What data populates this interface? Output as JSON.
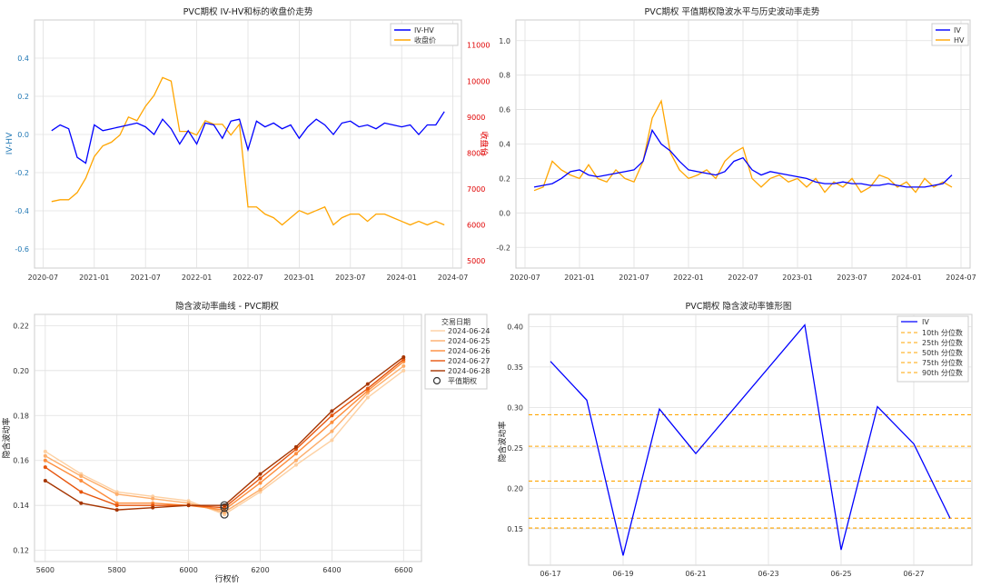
{
  "chart_data": [
    {
      "type": "line",
      "title": "PVC期权 IV-HV和标的收盘价走势",
      "xlabel": "",
      "ylabel": "IV-HV",
      "ylabel_right": "收盘价",
      "x_ticks": [
        "2020-07",
        "2021-01",
        "2021-07",
        "2022-01",
        "2022-07",
        "2023-01",
        "2023-07",
        "2024-01",
        "2024-07"
      ],
      "y_ticks": [
        0.4,
        0.2,
        0.0,
        -0.2,
        -0.4,
        -0.6
      ],
      "y_ticks_right": [
        11000,
        10000,
        9000,
        8000,
        7000,
        6000,
        5000
      ],
      "ylim": [
        -0.7,
        0.6
      ],
      "ylim_right": [
        4800,
        11700
      ],
      "grid": true,
      "legend": "top-right",
      "colors": {
        "IV-HV": "#0000ff",
        "收盘价": "#ffa500",
        "left_axis": "#1f77b4",
        "right_axis": "#e00000"
      },
      "series": [
        {
          "name": "IV-HV",
          "x": [
            "2020-08",
            "2020-09",
            "2020-10",
            "2020-11",
            "2020-12",
            "2021-01",
            "2021-02",
            "2021-03",
            "2021-04",
            "2021-05",
            "2021-06",
            "2021-07",
            "2021-08",
            "2021-09",
            "2021-10",
            "2021-11",
            "2021-12",
            "2022-01",
            "2022-02",
            "2022-03",
            "2022-04",
            "2022-05",
            "2022-06",
            "2022-07",
            "2022-08",
            "2022-09",
            "2022-10",
            "2022-11",
            "2022-12",
            "2023-01",
            "2023-02",
            "2023-03",
            "2023-04",
            "2023-05",
            "2023-06",
            "2023-07",
            "2023-08",
            "2023-09",
            "2023-10",
            "2023-11",
            "2023-12",
            "2024-01",
            "2024-02",
            "2024-03",
            "2024-04",
            "2024-05",
            "2024-06"
          ],
          "values": [
            0.02,
            0.05,
            0.03,
            -0.12,
            -0.15,
            0.05,
            0.02,
            0.03,
            0.04,
            0.05,
            0.06,
            0.04,
            0.0,
            0.08,
            0.03,
            -0.05,
            0.02,
            -0.05,
            0.06,
            0.05,
            -0.02,
            0.07,
            0.08,
            -0.08,
            0.07,
            0.04,
            0.06,
            0.03,
            0.05,
            -0.02,
            0.04,
            0.08,
            0.05,
            0.0,
            0.06,
            0.07,
            0.04,
            0.05,
            0.03,
            0.06,
            0.05,
            0.04,
            0.05,
            0.0,
            0.05,
            0.05,
            0.12
          ]
        },
        {
          "name": "收盘价",
          "x": [
            "2020-08",
            "2020-09",
            "2020-10",
            "2020-11",
            "2020-12",
            "2021-01",
            "2021-02",
            "2021-03",
            "2021-04",
            "2021-05",
            "2021-06",
            "2021-07",
            "2021-08",
            "2021-09",
            "2021-10",
            "2021-11",
            "2021-12",
            "2022-01",
            "2022-02",
            "2022-03",
            "2022-04",
            "2022-05",
            "2022-06",
            "2022-07",
            "2022-08",
            "2022-09",
            "2022-10",
            "2022-11",
            "2022-12",
            "2023-01",
            "2023-02",
            "2023-03",
            "2023-04",
            "2023-05",
            "2023-06",
            "2023-07",
            "2023-08",
            "2023-09",
            "2023-10",
            "2023-11",
            "2023-12",
            "2024-01",
            "2024-02",
            "2024-03",
            "2024-04",
            "2024-05",
            "2024-06"
          ],
          "values": [
            6650,
            6700,
            6700,
            6900,
            7300,
            7900,
            8200,
            8300,
            8500,
            9000,
            8900,
            9300,
            9600,
            10100,
            10000,
            8600,
            8600,
            8500,
            8900,
            8800,
            8800,
            8500,
            8800,
            6500,
            6500,
            6300,
            6200,
            6000,
            6200,
            6400,
            6300,
            6400,
            6500,
            6000,
            6200,
            6300,
            6300,
            6100,
            6300,
            6300,
            6200,
            6100,
            6000,
            6100,
            6000,
            6100,
            6000
          ]
        }
      ]
    },
    {
      "type": "line",
      "title": "PVC期权 平值期权隐波水平与历史波动率走势",
      "xlabel": "",
      "ylabel": "",
      "x_ticks": [
        "2020-07",
        "2021-01",
        "2021-07",
        "2022-01",
        "2022-07",
        "2023-01",
        "2023-07",
        "2024-01",
        "2024-07"
      ],
      "y_ticks": [
        1.0,
        0.8,
        0.6,
        0.4,
        0.2,
        0.0,
        -0.2
      ],
      "ylim": [
        -0.32,
        1.12
      ],
      "grid": true,
      "legend": "top-right",
      "colors": {
        "IV": "#0000ff",
        "HV": "#ffa500"
      },
      "series": [
        {
          "name": "IV",
          "x": [
            "2020-08",
            "2020-09",
            "2020-10",
            "2020-11",
            "2020-12",
            "2021-01",
            "2021-02",
            "2021-03",
            "2021-04",
            "2021-05",
            "2021-06",
            "2021-07",
            "2021-08",
            "2021-09",
            "2021-10",
            "2021-11",
            "2021-12",
            "2022-01",
            "2022-02",
            "2022-03",
            "2022-04",
            "2022-05",
            "2022-06",
            "2022-07",
            "2022-08",
            "2022-09",
            "2022-10",
            "2022-11",
            "2022-12",
            "2023-01",
            "2023-02",
            "2023-03",
            "2023-04",
            "2023-05",
            "2023-06",
            "2023-07",
            "2023-08",
            "2023-09",
            "2023-10",
            "2023-11",
            "2023-12",
            "2024-01",
            "2024-02",
            "2024-03",
            "2024-04",
            "2024-05",
            "2024-06"
          ],
          "values": [
            0.15,
            0.16,
            0.17,
            0.2,
            0.24,
            0.25,
            0.22,
            0.21,
            0.22,
            0.23,
            0.24,
            0.25,
            0.3,
            0.48,
            0.4,
            0.36,
            0.3,
            0.25,
            0.24,
            0.23,
            0.22,
            0.24,
            0.3,
            0.32,
            0.25,
            0.22,
            0.24,
            0.23,
            0.22,
            0.21,
            0.2,
            0.18,
            0.17,
            0.17,
            0.18,
            0.17,
            0.17,
            0.16,
            0.16,
            0.17,
            0.16,
            0.15,
            0.15,
            0.15,
            0.16,
            0.17,
            0.22
          ]
        },
        {
          "name": "HV",
          "x": [
            "2020-08",
            "2020-09",
            "2020-10",
            "2020-11",
            "2020-12",
            "2021-01",
            "2021-02",
            "2021-03",
            "2021-04",
            "2021-05",
            "2021-06",
            "2021-07",
            "2021-08",
            "2021-09",
            "2021-10",
            "2021-11",
            "2021-12",
            "2022-01",
            "2022-02",
            "2022-03",
            "2022-04",
            "2022-05",
            "2022-06",
            "2022-07",
            "2022-08",
            "2022-09",
            "2022-10",
            "2022-11",
            "2022-12",
            "2023-01",
            "2023-02",
            "2023-03",
            "2023-04",
            "2023-05",
            "2023-06",
            "2023-07",
            "2023-08",
            "2023-09",
            "2023-10",
            "2023-11",
            "2023-12",
            "2024-01",
            "2024-02",
            "2024-03",
            "2024-04",
            "2024-05",
            "2024-06"
          ],
          "values": [
            0.13,
            0.15,
            0.3,
            0.25,
            0.22,
            0.2,
            0.28,
            0.2,
            0.18,
            0.25,
            0.2,
            0.18,
            0.3,
            0.55,
            0.65,
            0.35,
            0.25,
            0.2,
            0.22,
            0.25,
            0.2,
            0.3,
            0.35,
            0.38,
            0.2,
            0.15,
            0.2,
            0.22,
            0.18,
            0.2,
            0.15,
            0.2,
            0.12,
            0.18,
            0.15,
            0.2,
            0.12,
            0.15,
            0.22,
            0.2,
            0.15,
            0.18,
            0.12,
            0.2,
            0.15,
            0.18,
            0.15
          ]
        }
      ]
    },
    {
      "type": "line",
      "title": "隐含波动率曲线 - PVC期权",
      "xlabel": "行权价",
      "ylabel": "隐含波动率",
      "x": [
        5600,
        5700,
        5800,
        5900,
        6000,
        6100,
        6200,
        6300,
        6400,
        6500,
        6600
      ],
      "x_ticks": [
        5600,
        5800,
        6000,
        6200,
        6400,
        6600
      ],
      "y_ticks": [
        0.22,
        0.2,
        0.18,
        0.16,
        0.14,
        0.12
      ],
      "xlim": [
        5570,
        6650
      ],
      "ylim": [
        0.115,
        0.225
      ],
      "grid": true,
      "legend_title": "交易日期",
      "legend": "top-right",
      "series": [
        {
          "name": "2024-06-24",
          "color": "#fdd0a2",
          "values": [
            0.164,
            0.154,
            0.146,
            0.144,
            0.142,
            0.136,
            0.146,
            0.158,
            0.169,
            0.188,
            0.2
          ]
        },
        {
          "name": "2024-06-25",
          "color": "#fdae6b",
          "values": [
            0.162,
            0.153,
            0.145,
            0.143,
            0.141,
            0.137,
            0.147,
            0.16,
            0.173,
            0.19,
            0.202
          ]
        },
        {
          "name": "2024-06-26",
          "color": "#fd8d3c",
          "values": [
            0.16,
            0.151,
            0.141,
            0.141,
            0.14,
            0.138,
            0.15,
            0.163,
            0.177,
            0.191,
            0.204
          ]
        },
        {
          "name": "2024-06-27",
          "color": "#e6550d",
          "values": [
            0.157,
            0.146,
            0.14,
            0.14,
            0.14,
            0.139,
            0.152,
            0.165,
            0.18,
            0.192,
            0.205
          ]
        },
        {
          "name": "2024-06-28",
          "color": "#a63603",
          "values": [
            0.151,
            0.141,
            0.138,
            0.139,
            0.14,
            0.14,
            0.154,
            0.166,
            0.182,
            0.194,
            0.206
          ]
        }
      ],
      "atm_label": "平值期权",
      "atm_points": [
        {
          "x": 6100,
          "y": 0.136
        },
        {
          "x": 6100,
          "y": 0.139
        },
        {
          "x": 6100,
          "y": 0.14
        }
      ]
    },
    {
      "type": "line",
      "title": "PVC期权 隐含波动率锥形图",
      "xlabel": "",
      "ylabel": "隐含波动率",
      "x": [
        "06-17",
        "06-18",
        "06-19",
        "06-20",
        "06-21",
        "06-22",
        "06-23",
        "06-24",
        "06-25",
        "06-26",
        "06-27",
        "06-28"
      ],
      "x_ticks": [
        "06-17",
        "06-19",
        "06-21",
        "06-23",
        "06-25",
        "06-27"
      ],
      "y_ticks": [
        0.4,
        0.35,
        0.3,
        0.25,
        0.2,
        0.15
      ],
      "ylim": [
        0.105,
        0.415
      ],
      "grid": true,
      "legend": "top-right",
      "series": [
        {
          "name": "IV",
          "color": "#0000ff",
          "values": [
            0.357,
            0.309,
            0.117,
            0.298,
            0.243,
            null,
            null,
            0.402,
            0.124,
            0.301,
            0.255,
            0.163
          ]
        }
      ],
      "percentiles": [
        {
          "name": "10th 分位数",
          "value": 0.151
        },
        {
          "name": "25th 分位数",
          "value": 0.163
        },
        {
          "name": "50th 分位数",
          "value": 0.209
        },
        {
          "name": "75th 分位数",
          "value": 0.252
        },
        {
          "name": "90th 分位数",
          "value": 0.291
        }
      ],
      "percentile_color": "#ffa500"
    }
  ]
}
